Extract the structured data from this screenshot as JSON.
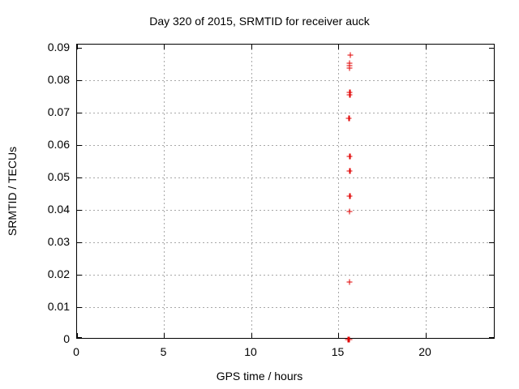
{
  "chart_data": {
    "type": "scatter",
    "title": "Day 320 of 2015, SRMTID for receiver auck",
    "xlabel": "GPS time / hours",
    "ylabel": "SRMTID / TECUs",
    "xlim": [
      0,
      24
    ],
    "ylim": [
      0,
      0.091
    ],
    "grid": true,
    "legend_position": "none",
    "marker": "plus",
    "colors": {
      "marker": "#e00000",
      "grid": "#a8a8a8",
      "axis": "#000000",
      "text": "#000000",
      "background": "#ffffff"
    },
    "x_ticks": [
      {
        "value": 0,
        "label": "0"
      },
      {
        "value": 5,
        "label": "5"
      },
      {
        "value": 10,
        "label": "10"
      },
      {
        "value": 15,
        "label": "15"
      },
      {
        "value": 20,
        "label": "20"
      }
    ],
    "y_ticks": [
      {
        "value": 0,
        "label": "0"
      },
      {
        "value": 0.01,
        "label": "0.01"
      },
      {
        "value": 0.02,
        "label": "0.02"
      },
      {
        "value": 0.03,
        "label": "0.03"
      },
      {
        "value": 0.04,
        "label": "0.04"
      },
      {
        "value": 0.05,
        "label": "0.05"
      },
      {
        "value": 0.06,
        "label": "0.06"
      },
      {
        "value": 0.07,
        "label": "0.07"
      },
      {
        "value": 0.08,
        "label": "0.08"
      },
      {
        "value": 0.09,
        "label": "0.09"
      }
    ],
    "points": [
      [
        15.68,
        0.0877
      ],
      [
        15.62,
        0.0852
      ],
      [
        15.62,
        0.0845
      ],
      [
        15.62,
        0.0837
      ],
      [
        15.64,
        0.0762
      ],
      [
        15.64,
        0.0755
      ],
      [
        15.6,
        0.0683
      ],
      [
        15.65,
        0.0565
      ],
      [
        15.65,
        0.052
      ],
      [
        15.65,
        0.0443
      ],
      [
        15.63,
        0.0395
      ],
      [
        15.62,
        0.0178
      ],
      [
        15.54,
        0.0
      ],
      [
        15.56,
        0.0
      ],
      [
        15.58,
        0.0
      ],
      [
        15.6,
        0.0
      ],
      [
        15.62,
        0.0
      ]
    ]
  }
}
